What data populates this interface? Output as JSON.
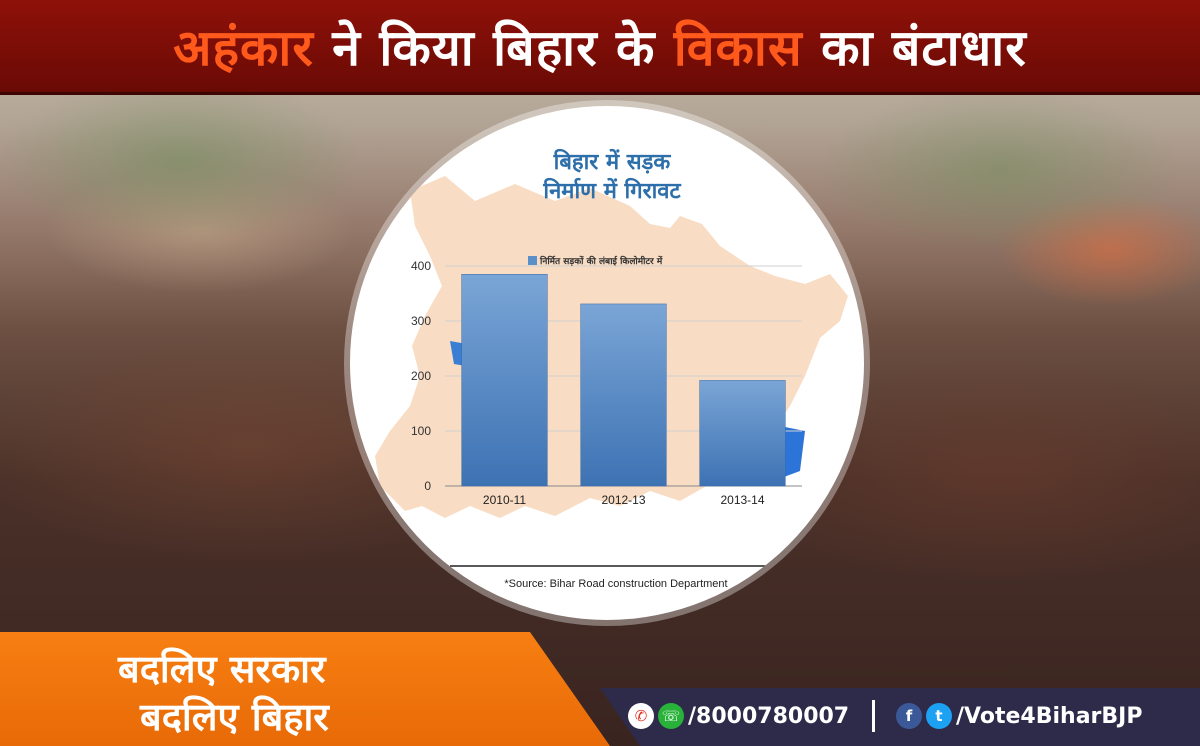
{
  "header": {
    "title_parts": [
      "अहंकार",
      " ने किया बिहार के ",
      "विकास",
      " का बंटाधार"
    ]
  },
  "chart_data": {
    "type": "bar",
    "title_line1": "बिहार में सड़क",
    "title_line2": "निर्माण में गिरावट",
    "categories": [
      "2010-11",
      "2012-13",
      "2013-14"
    ],
    "series": [
      {
        "name": "निर्मित सड़कों की लंबाई किलोमीटर में",
        "values": [
          385,
          331,
          192
        ]
      }
    ],
    "ylim": [
      0,
      400
    ],
    "yticks": [
      0,
      100,
      200,
      300,
      400
    ],
    "grid": true,
    "legend_position": "top-left",
    "bar_color": "#5b8fc7",
    "source": "*Source: Bihar Road construction Department"
  },
  "footer": {
    "slogan_line1": "बदलिए सरकार",
    "slogan_line2": "बदलिए बिहार",
    "phone": "/8000780007",
    "social": "/Vote4BiharBJP",
    "phone_icons": [
      "missed-call-icon",
      "whatsapp-icon"
    ],
    "social_icons": [
      "facebook-icon",
      "twitter-icon"
    ]
  }
}
